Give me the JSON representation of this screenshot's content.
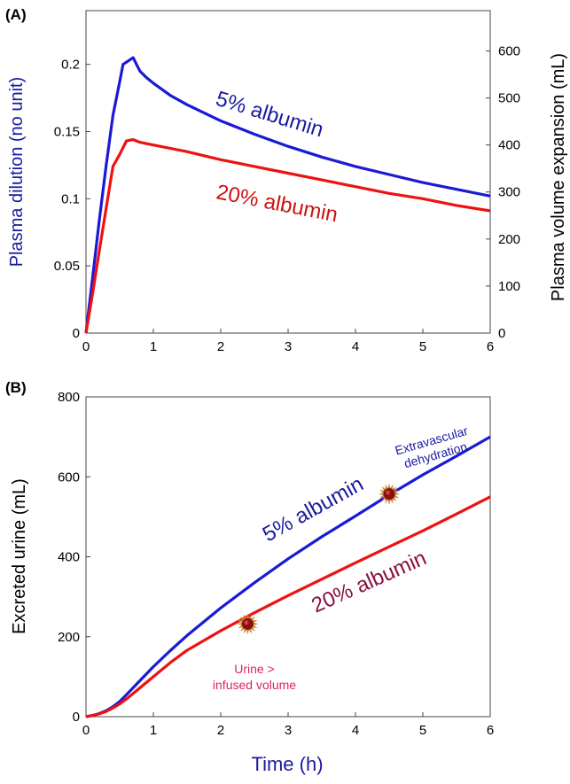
{
  "chart_data": [
    {
      "type": "line",
      "panel_label": "(A)",
      "xlim": [
        0,
        6
      ],
      "ylim": [
        0,
        0.24
      ],
      "y2lim": [
        0,
        685.7
      ],
      "x_ticks": [
        "0",
        "1",
        "2",
        "3",
        "4",
        "5",
        "6"
      ],
      "y_ticks": [
        "0",
        "0.05",
        "0.1",
        "0.15",
        "0.2"
      ],
      "y2_ticks": [
        "0",
        "100",
        "200",
        "300",
        "400",
        "500",
        "600"
      ],
      "ylabel": "Plasma dilution (no unit)",
      "y2label": "Plasma volume expansion (mL)",
      "grid": false,
      "series": [
        {
          "name": "5% albumin",
          "color": "#1a1ad6",
          "x": [
            0,
            0.1,
            0.2,
            0.3,
            0.4,
            0.5,
            0.55,
            0.7,
            0.75,
            0.8,
            0.9,
            1,
            1.25,
            1.5,
            2,
            2.5,
            3,
            3.5,
            4,
            4.5,
            5,
            5.5,
            6
          ],
          "y": [
            0,
            0.042,
            0.085,
            0.125,
            0.162,
            0.187,
            0.2,
            0.205,
            0.2,
            0.195,
            0.19,
            0.186,
            0.177,
            0.17,
            0.158,
            0.148,
            0.139,
            0.131,
            0.124,
            0.118,
            0.112,
            0.107,
            0.102
          ]
        },
        {
          "name": "20% albumin",
          "color": "#ee1111",
          "x": [
            0,
            0.1,
            0.2,
            0.3,
            0.4,
            0.5,
            0.6,
            0.7,
            0.8,
            1,
            1.5,
            2,
            2.5,
            3,
            3.5,
            4,
            4.5,
            5,
            5.5,
            6
          ],
          "y": [
            0,
            0.03,
            0.062,
            0.093,
            0.124,
            0.133,
            0.143,
            0.144,
            0.142,
            0.14,
            0.135,
            0.129,
            0.124,
            0.119,
            0.114,
            0.109,
            0.104,
            0.1,
            0.095,
            0.091
          ]
        }
      ],
      "annotations": [
        "5% albumin",
        "20% albumin"
      ]
    },
    {
      "type": "line",
      "panel_label": "(B)",
      "xlim": [
        0,
        6
      ],
      "ylim": [
        0,
        800
      ],
      "x_ticks": [
        "0",
        "1",
        "2",
        "3",
        "4",
        "5",
        "6"
      ],
      "y_ticks": [
        "0",
        "200",
        "400",
        "600",
        "800"
      ],
      "xlabel": "Time (h)",
      "ylabel": "Excreted urine (mL)",
      "grid": false,
      "series": [
        {
          "name": "5% albumin",
          "color": "#1a1ad6",
          "x": [
            0,
            0.1,
            0.2,
            0.3,
            0.4,
            0.5,
            0.6,
            0.8,
            1,
            1.25,
            1.5,
            2,
            2.5,
            3,
            3.5,
            4,
            4.5,
            5,
            5.5,
            6
          ],
          "y": [
            0,
            3,
            8,
            15,
            25,
            38,
            55,
            90,
            125,
            165,
            203,
            272,
            335,
            395,
            450,
            502,
            555,
            605,
            652,
            700
          ]
        },
        {
          "name": "20% albumin",
          "color": "#ee1111",
          "x": [
            0,
            0.1,
            0.2,
            0.3,
            0.4,
            0.5,
            0.6,
            0.8,
            1,
            1.25,
            1.5,
            2,
            2.5,
            3,
            3.5,
            4,
            4.5,
            5,
            5.5,
            6
          ],
          "y": [
            0,
            3,
            7,
            13,
            22,
            32,
            44,
            72,
            100,
            135,
            166,
            215,
            260,
            303,
            344,
            385,
            425,
            465,
            507,
            550
          ]
        }
      ],
      "markers": [
        {
          "x": 2.4,
          "y": 232,
          "label": "Urine >\ninfused volume"
        },
        {
          "x": 4.5,
          "y": 557,
          "label": "Extravascular\ndehydration"
        }
      ],
      "annotations": [
        "5% albumin",
        "20% albumin"
      ]
    }
  ]
}
